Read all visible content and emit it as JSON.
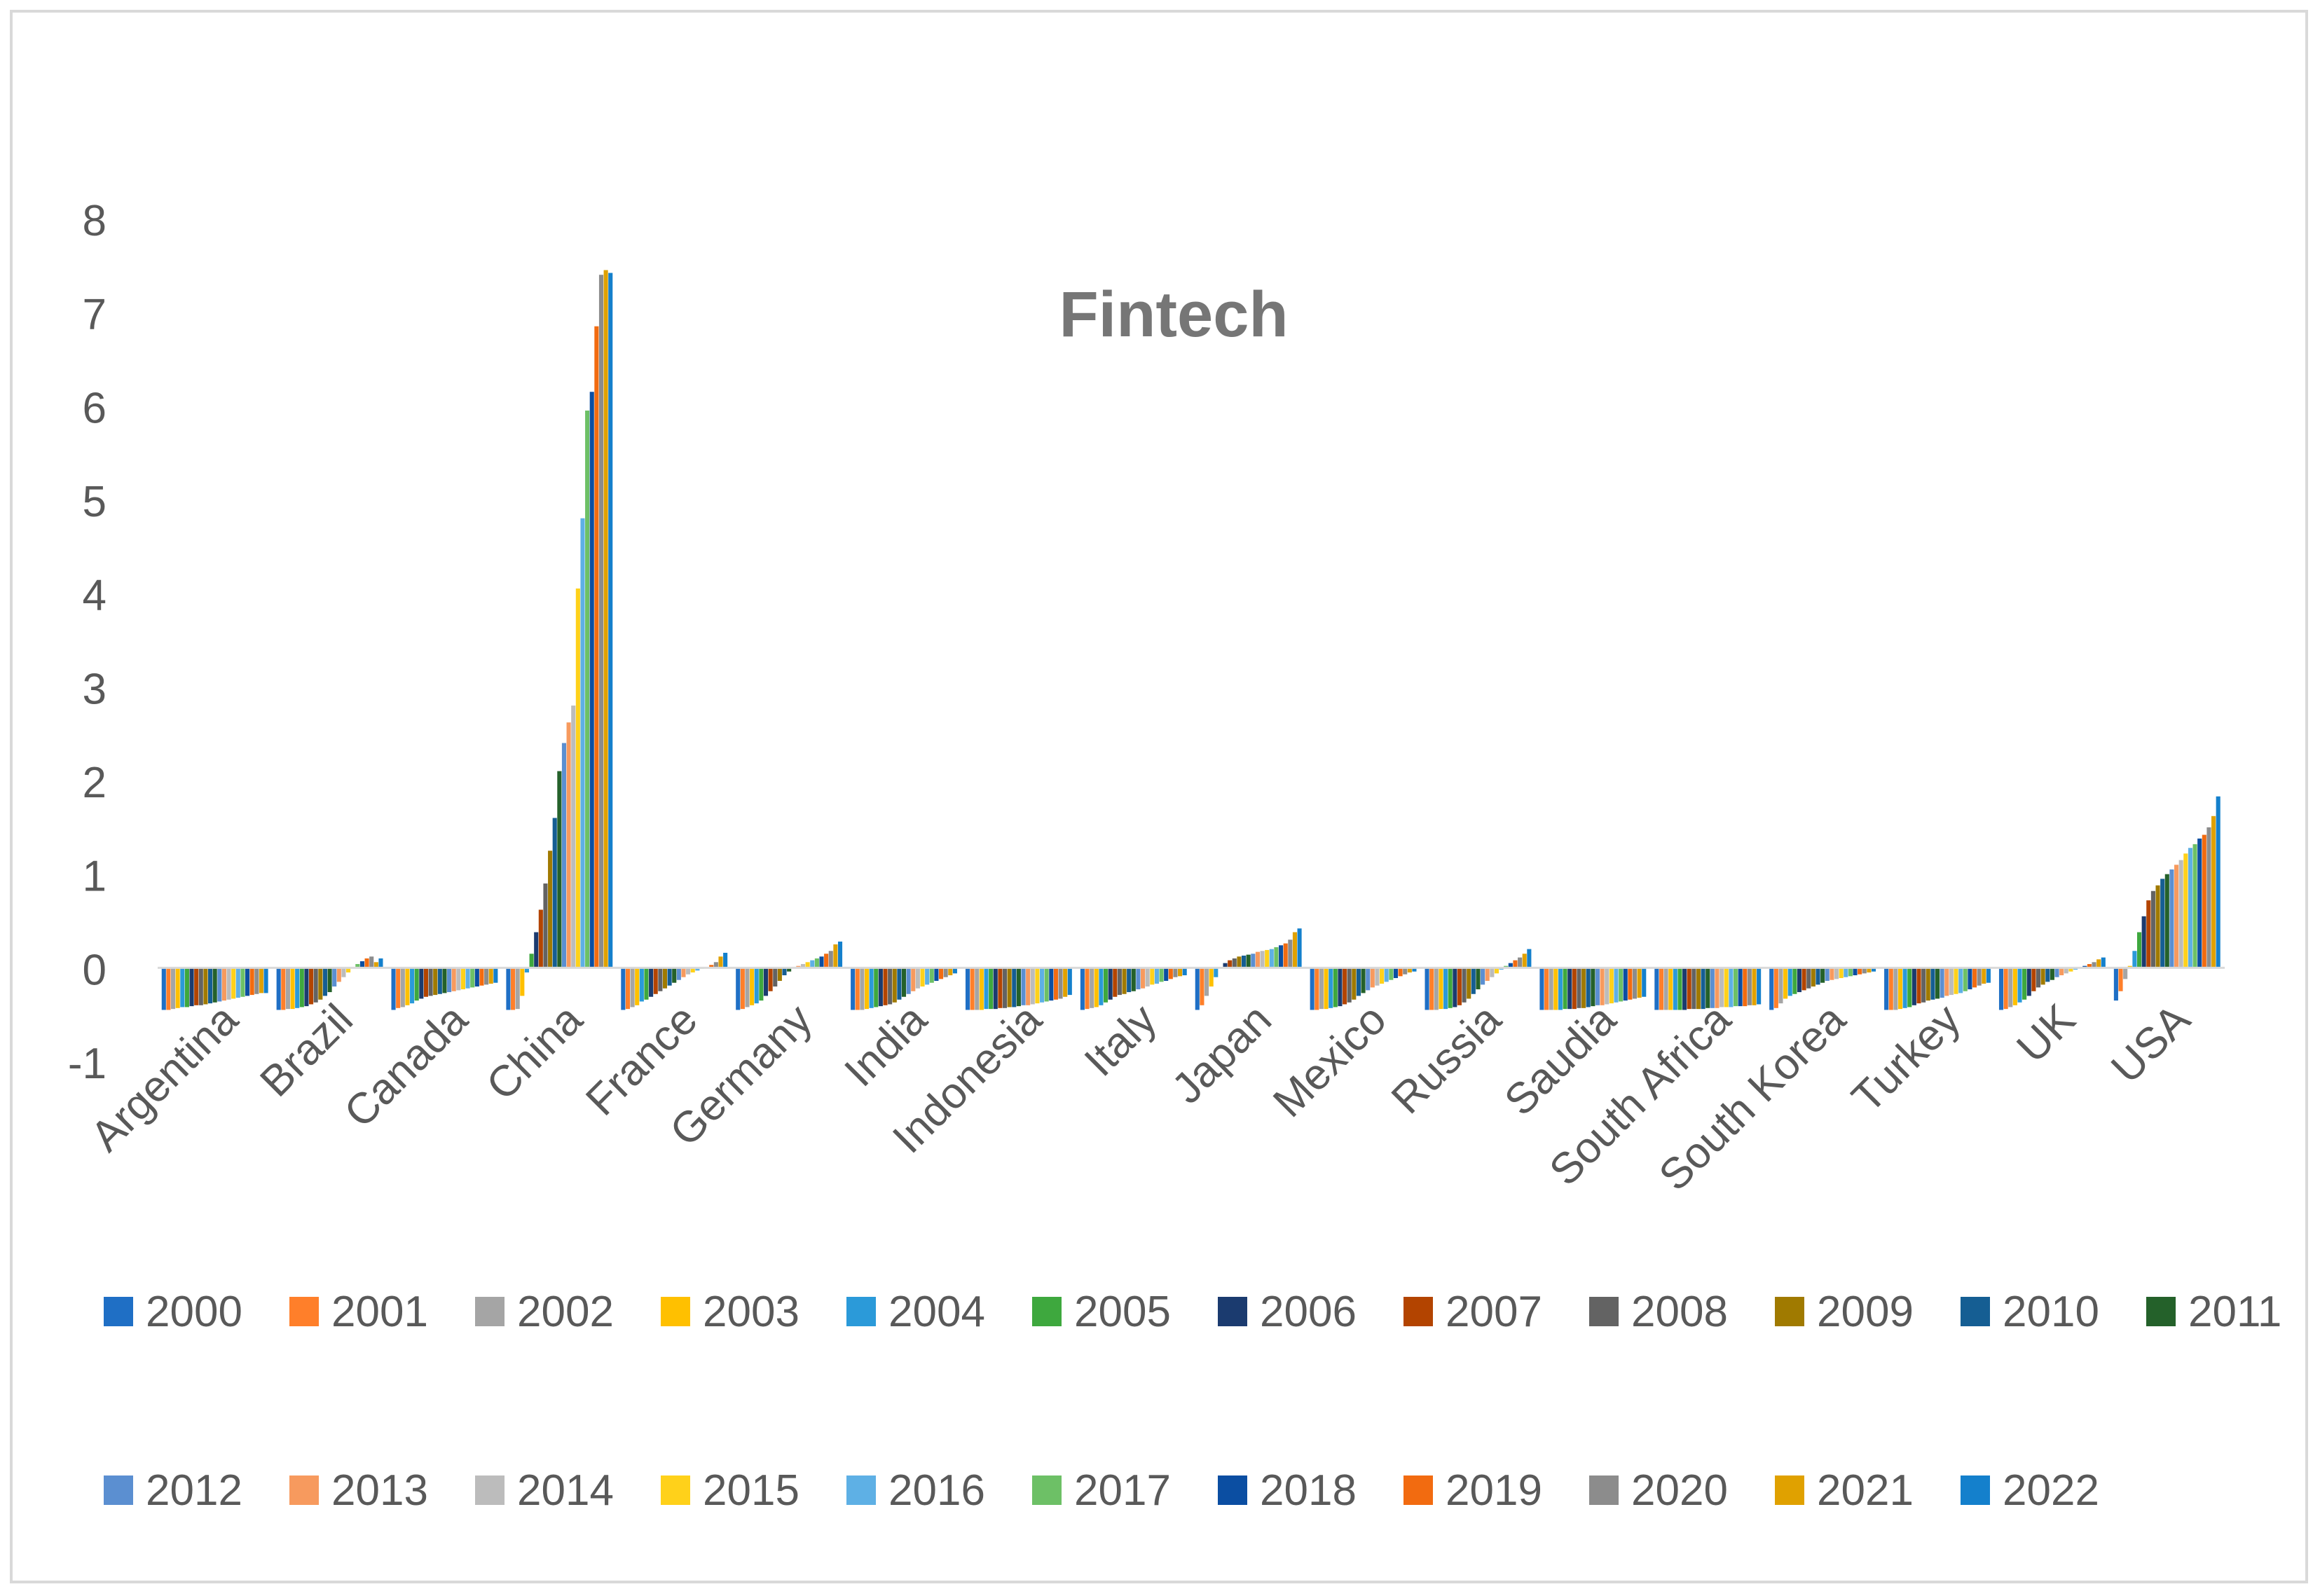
{
  "chart_data": {
    "type": "bar",
    "title": "Fintech",
    "xlabel": "",
    "ylabel": "",
    "ylim": [
      -1,
      8
    ],
    "yticks": [
      -1,
      0,
      1,
      2,
      3,
      4,
      5,
      6,
      7,
      8
    ],
    "grid": false,
    "legend_position": "bottom",
    "categories": [
      "Argentina",
      "Brazil",
      "Canada",
      "China",
      "France",
      "Germany",
      "India",
      "Indonesia",
      "Italy",
      "Japan",
      "Mexico",
      "Russia",
      "Saudia",
      "South Africa",
      "South Korea",
      "Turkey",
      "UK",
      "USA"
    ],
    "series": [
      {
        "name": "2000",
        "color": "#1f6fc5",
        "values": [
          -0.45,
          -0.45,
          -0.45,
          -0.45,
          -0.45,
          -0.45,
          -0.45,
          -0.45,
          -0.45,
          -0.45,
          -0.45,
          -0.45,
          -0.45,
          -0.45,
          -0.45,
          -0.45,
          -0.45,
          -0.35
        ]
      },
      {
        "name": "2001",
        "color": "#ff7f2a",
        "values": [
          -0.45,
          -0.45,
          -0.43,
          -0.45,
          -0.44,
          -0.44,
          -0.45,
          -0.45,
          -0.44,
          -0.4,
          -0.45,
          -0.45,
          -0.45,
          -0.45,
          -0.43,
          -0.45,
          -0.44,
          -0.25
        ]
      },
      {
        "name": "2002",
        "color": "#a5a5a5",
        "values": [
          -0.44,
          -0.44,
          -0.42,
          -0.44,
          -0.42,
          -0.42,
          -0.45,
          -0.45,
          -0.43,
          -0.3,
          -0.44,
          -0.45,
          -0.45,
          -0.45,
          -0.38,
          -0.45,
          -0.42,
          -0.12
        ]
      },
      {
        "name": "2003",
        "color": "#ffc000",
        "values": [
          -0.43,
          -0.44,
          -0.4,
          -0.3,
          -0.4,
          -0.4,
          -0.44,
          -0.45,
          -0.42,
          -0.2,
          -0.44,
          -0.44,
          -0.45,
          -0.45,
          -0.33,
          -0.44,
          -0.4,
          0.02
        ]
      },
      {
        "name": "2004",
        "color": "#2b9ad9",
        "values": [
          -0.42,
          -0.43,
          -0.38,
          -0.05,
          -0.36,
          -0.38,
          -0.43,
          -0.44,
          -0.4,
          -0.1,
          -0.43,
          -0.44,
          -0.45,
          -0.45,
          -0.3,
          -0.43,
          -0.37,
          0.18
        ]
      },
      {
        "name": "2005",
        "color": "#3ea83e",
        "values": [
          -0.42,
          -0.42,
          -0.35,
          0.15,
          -0.34,
          -0.35,
          -0.42,
          -0.44,
          -0.37,
          0.0,
          -0.42,
          -0.43,
          -0.44,
          -0.45,
          -0.28,
          -0.42,
          -0.34,
          0.38
        ]
      },
      {
        "name": "2006",
        "color": "#1b3b6f",
        "values": [
          -0.41,
          -0.41,
          -0.33,
          0.38,
          -0.31,
          -0.3,
          -0.41,
          -0.44,
          -0.34,
          0.05,
          -0.41,
          -0.42,
          -0.44,
          -0.45,
          -0.26,
          -0.4,
          -0.3,
          0.55
        ]
      },
      {
        "name": "2007",
        "color": "#b34400",
        "values": [
          -0.4,
          -0.39,
          -0.31,
          0.62,
          -0.28,
          -0.25,
          -0.4,
          -0.43,
          -0.31,
          0.08,
          -0.39,
          -0.4,
          -0.44,
          -0.44,
          -0.24,
          -0.38,
          -0.25,
          0.72
        ]
      },
      {
        "name": "2008",
        "color": "#636363",
        "values": [
          -0.4,
          -0.37,
          -0.3,
          0.9,
          -0.25,
          -0.2,
          -0.39,
          -0.43,
          -0.29,
          0.1,
          -0.37,
          -0.37,
          -0.43,
          -0.44,
          -0.22,
          -0.37,
          -0.21,
          0.82
        ]
      },
      {
        "name": "2009",
        "color": "#a07a00",
        "values": [
          -0.39,
          -0.34,
          -0.29,
          1.25,
          -0.22,
          -0.14,
          -0.37,
          -0.42,
          -0.28,
          0.12,
          -0.34,
          -0.33,
          -0.43,
          -0.44,
          -0.2,
          -0.35,
          -0.18,
          0.88
        ]
      },
      {
        "name": "2010",
        "color": "#155e93",
        "values": [
          -0.38,
          -0.3,
          -0.28,
          1.6,
          -0.19,
          -0.08,
          -0.34,
          -0.42,
          -0.26,
          0.13,
          -0.3,
          -0.28,
          -0.42,
          -0.44,
          -0.18,
          -0.34,
          -0.15,
          0.95
        ]
      },
      {
        "name": "2011",
        "color": "#24612a",
        "values": [
          -0.37,
          -0.26,
          -0.27,
          2.1,
          -0.16,
          -0.04,
          -0.31,
          -0.41,
          -0.25,
          0.14,
          -0.27,
          -0.23,
          -0.41,
          -0.43,
          -0.16,
          -0.33,
          -0.13,
          1.0
        ]
      },
      {
        "name": "2012",
        "color": "#5b8fd1",
        "values": [
          -0.36,
          -0.2,
          -0.26,
          2.4,
          -0.13,
          0.0,
          -0.28,
          -0.4,
          -0.23,
          0.15,
          -0.24,
          -0.18,
          -0.4,
          -0.43,
          -0.14,
          -0.32,
          -0.1,
          1.05
        ]
      },
      {
        "name": "2013",
        "color": "#f79a5e",
        "values": [
          -0.35,
          -0.15,
          -0.25,
          2.62,
          -0.1,
          0.02,
          -0.25,
          -0.4,
          -0.22,
          0.17,
          -0.21,
          -0.14,
          -0.4,
          -0.43,
          -0.13,
          -0.3,
          -0.08,
          1.1
        ]
      },
      {
        "name": "2014",
        "color": "#bcbcbc",
        "values": [
          -0.34,
          -0.1,
          -0.24,
          2.8,
          -0.07,
          0.04,
          -0.22,
          -0.39,
          -0.2,
          0.18,
          -0.19,
          -0.1,
          -0.39,
          -0.42,
          -0.12,
          -0.29,
          -0.06,
          1.15
        ]
      },
      {
        "name": "2015",
        "color": "#ffd11a",
        "values": [
          -0.33,
          -0.05,
          -0.23,
          4.05,
          -0.05,
          0.06,
          -0.2,
          -0.38,
          -0.18,
          0.19,
          -0.17,
          -0.06,
          -0.38,
          -0.42,
          -0.11,
          -0.28,
          -0.04,
          1.22
        ]
      },
      {
        "name": "2016",
        "color": "#5eb0e5",
        "values": [
          -0.32,
          0.0,
          -0.22,
          4.8,
          -0.03,
          0.08,
          -0.18,
          -0.37,
          -0.17,
          0.2,
          -0.15,
          -0.02,
          -0.37,
          -0.42,
          -0.1,
          -0.27,
          -0.02,
          1.28
        ]
      },
      {
        "name": "2017",
        "color": "#6dc066",
        "values": [
          -0.31,
          0.04,
          -0.21,
          5.95,
          -0.01,
          0.1,
          -0.16,
          -0.36,
          -0.15,
          0.22,
          -0.13,
          0.02,
          -0.36,
          -0.41,
          -0.09,
          -0.25,
          0.0,
          1.32
        ]
      },
      {
        "name": "2018",
        "color": "#0b4ea2",
        "values": [
          -0.3,
          0.07,
          -0.2,
          6.15,
          0.01,
          0.12,
          -0.14,
          -0.35,
          -0.14,
          0.24,
          -0.11,
          0.05,
          -0.35,
          -0.41,
          -0.08,
          -0.23,
          0.02,
          1.38
        ]
      },
      {
        "name": "2019",
        "color": "#f26b10",
        "values": [
          -0.29,
          0.1,
          -0.19,
          6.85,
          0.03,
          0.15,
          -0.12,
          -0.34,
          -0.12,
          0.26,
          -0.09,
          0.08,
          -0.34,
          -0.41,
          -0.07,
          -0.21,
          0.04,
          1.42
        ]
      },
      {
        "name": "2020",
        "color": "#8c8c8c",
        "values": [
          -0.28,
          0.12,
          -0.18,
          7.4,
          0.06,
          0.18,
          -0.1,
          -0.33,
          -0.1,
          0.3,
          -0.07,
          0.11,
          -0.33,
          -0.4,
          -0.06,
          -0.19,
          0.06,
          1.5
        ]
      },
      {
        "name": "2021",
        "color": "#e0a100",
        "values": [
          -0.27,
          0.06,
          -0.17,
          7.45,
          0.12,
          0.25,
          -0.08,
          -0.31,
          -0.09,
          0.38,
          -0.05,
          0.15,
          -0.32,
          -0.4,
          -0.05,
          -0.17,
          0.09,
          1.62
        ]
      },
      {
        "name": "2022",
        "color": "#1480cc",
        "values": [
          -0.27,
          0.1,
          -0.16,
          7.42,
          0.16,
          0.28,
          -0.06,
          -0.29,
          -0.08,
          0.42,
          -0.04,
          0.2,
          -0.31,
          -0.39,
          -0.04,
          -0.16,
          0.11,
          1.83
        ]
      }
    ]
  }
}
